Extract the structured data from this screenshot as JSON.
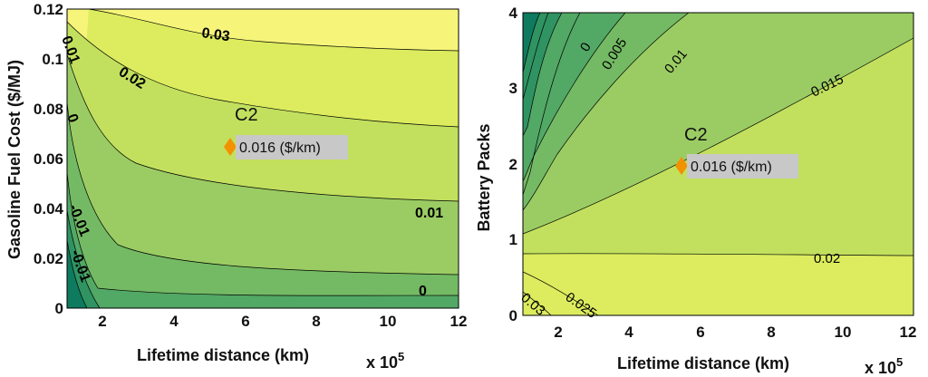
{
  "chart_data": [
    {
      "type": "contour",
      "xlabel": "Lifetime distance (km)",
      "ylabel": "Gasoline Fuel Cost ($/MJ)",
      "x_multiplier": "x 10",
      "x_multiplier_exp": "5",
      "xlim": [
        1,
        12
      ],
      "ylim": [
        0,
        0.12
      ],
      "xticks": [
        "2",
        "4",
        "6",
        "8",
        "10",
        "12"
      ],
      "yticks": [
        "0",
        "0.02",
        "0.04",
        "0.06",
        "0.08",
        "0.1",
        "0.12"
      ],
      "contour_labels": [
        "0.03",
        "0.02",
        "0.01",
        "0",
        "-0.01",
        "0.01",
        "0",
        "-0.01"
      ],
      "point": {
        "name": "C2",
        "x": 5.5,
        "y": 0.065,
        "label": "0.016 ($/km)"
      },
      "colors": [
        "#0e7a5e",
        "#2f9362",
        "#52a865",
        "#74ba64",
        "#9bcc63",
        "#c2e05e",
        "#dcec5e",
        "#f6f57a"
      ]
    },
    {
      "type": "contour",
      "xlabel": "Lifetime distance (km)",
      "ylabel": "Battery Packs",
      "x_multiplier": "x 10",
      "x_multiplier_exp": "5",
      "xlim": [
        1,
        12
      ],
      "ylim": [
        0,
        4
      ],
      "xticks": [
        "2",
        "4",
        "6",
        "8",
        "10",
        "12"
      ],
      "yticks": [
        "0",
        "1",
        "2",
        "3",
        "4"
      ],
      "contour_labels": [
        "0",
        "0.005",
        "0.01",
        "0.015",
        "0.02",
        "0.025",
        "0.03"
      ],
      "point": {
        "name": "C2",
        "x": 5.5,
        "y": 2,
        "label": "0.016 ($/km)"
      },
      "colors": [
        "#0e7a5e",
        "#2f9362",
        "#52a865",
        "#74ba64",
        "#9bcc63",
        "#c2e05e",
        "#dcec5e"
      ]
    }
  ]
}
